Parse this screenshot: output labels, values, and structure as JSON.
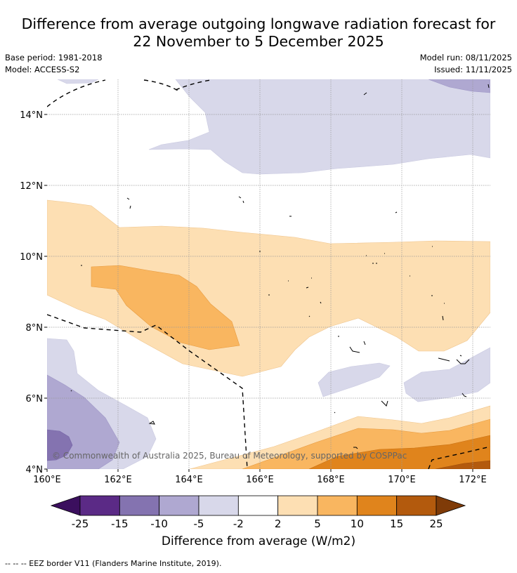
{
  "title": {
    "line1": "Difference from average outgoing longwave radiation forecast for",
    "line2": "22 November to 5 December 2025"
  },
  "meta": {
    "base_period": "Base period: 1981-2018",
    "model": "Model: ACCESS-S2",
    "model_run": "Model run: 08/11/2025",
    "issued": "Issued: 11/11/2025"
  },
  "map": {
    "lon_ticks": [
      "160°E",
      "162°E",
      "164°E",
      "166°E",
      "168°E",
      "170°E",
      "172°E"
    ],
    "lat_ticks": [
      "14°N",
      "12°N",
      "10°N",
      "8°N",
      "6°N",
      "4°N"
    ],
    "copyright": "© Commonwealth of Australia 2025, Bureau of Meteorology, supported by COSPPac"
  },
  "colorbar": {
    "ticks": [
      "-25",
      "-15",
      "-10",
      "-5",
      "-2",
      "2",
      "5",
      "10",
      "15",
      "25"
    ],
    "colors": [
      "#5b2a86",
      "#8473b0",
      "#afa8d1",
      "#d8d8ea",
      "#ffffff",
      "#fddfb3",
      "#f9b660",
      "#e0841c",
      "#b35a0d"
    ],
    "under_color": "#3b0f5e",
    "over_color": "#7f3b08",
    "label": "Difference from average (W/m2)"
  },
  "footnote": "--  --  -- EEZ border V11 (Flanders Marine Institute, 2019)."
}
